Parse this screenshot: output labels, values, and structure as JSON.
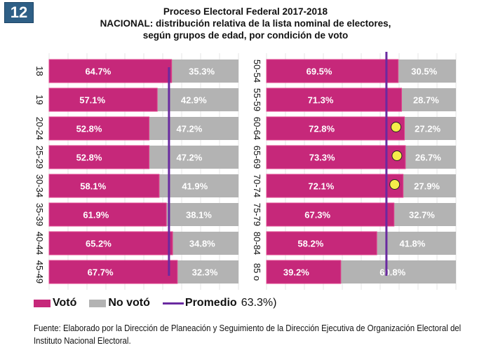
{
  "badge": "12",
  "title_lines": [
    "Proceso Electoral Federal 2017-2018",
    "NACIONAL: distribución relativa de la lista nominal de electores,",
    "según grupos de edad, por condición de voto"
  ],
  "colors": {
    "voto": "#c6287a",
    "no_voto": "#b3b3b3",
    "promedio": "#6a2aa0",
    "marker": "#f5ec4a"
  },
  "legend": {
    "voto": "Votó",
    "no_voto": "No votó",
    "promedio": "Promedio",
    "promedio_value": "63.3%)"
  },
  "source": "Fuente: Elaborado por la Dirección de Planeación y Seguimiento de la Dirección Ejecutiva de Organización Electoral del Instituto Nacional Electoral.",
  "chart_data": {
    "type": "bar",
    "stacked": true,
    "orientation": "horizontal",
    "title": "Proceso Electoral Federal 2017-2018 NACIONAL: distribución relativa de la lista nominal de electores, según grupos de edad, por condición de voto",
    "average": 63.3,
    "xlim": [
      0,
      100
    ],
    "panels": [
      {
        "categories": [
          "18",
          "19",
          "20-24",
          "25-29",
          "30-34",
          "35-39",
          "40-44",
          "45-49"
        ],
        "series": [
          {
            "name": "Votó",
            "values": [
              64.7,
              57.1,
              52.8,
              52.8,
              58.1,
              61.9,
              65.2,
              67.7
            ],
            "labels": [
              "64.7%",
              "57.1%",
              "52.8%",
              "52.8%",
              "58.1%",
              "61.9%",
              "65.2%",
              "67.7%"
            ]
          },
          {
            "name": "No votó",
            "values": [
              35.3,
              42.9,
              47.2,
              47.2,
              41.9,
              38.1,
              34.8,
              32.3
            ],
            "labels": [
              "35.3%",
              "42.9%",
              "47.2%",
              "47.2%",
              "41.9%",
              "38.1%",
              "34.8%",
              "32.3%"
            ]
          }
        ],
        "highlighted": []
      },
      {
        "categories": [
          "50-54",
          "55-59",
          "60-64",
          "65-69",
          "70-74",
          "75-79",
          "80-84",
          "85 o"
        ],
        "series": [
          {
            "name": "Votó",
            "values": [
              69.5,
              71.3,
              72.8,
              73.3,
              72.1,
              67.3,
              58.2,
              39.2
            ],
            "labels": [
              "69.5%",
              "71.3%",
              "72.8%",
              "73.3%",
              "72.1%",
              "67.3%",
              "58.2%",
              "39.2%"
            ]
          },
          {
            "name": "No votó",
            "values": [
              30.5,
              28.7,
              27.2,
              26.7,
              27.9,
              32.7,
              41.8,
              60.8
            ],
            "labels": [
              "30.5%",
              "28.7%",
              "27.2%",
              "26.7%",
              "27.9%",
              "32.7%",
              "41.8%",
              "60.8%"
            ]
          }
        ],
        "highlighted": [
          "60-64",
          "65-69",
          "70-74"
        ]
      }
    ],
    "legend": [
      "Votó",
      "No votó",
      "Promedio"
    ],
    "legend_position": "bottom-left",
    "grid": true
  }
}
